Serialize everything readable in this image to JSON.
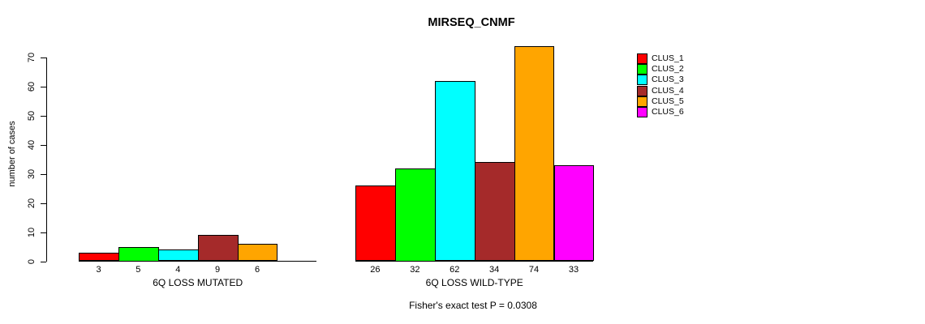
{
  "chart_data": {
    "type": "bar",
    "title": "MIRSEQ_CNMF",
    "ylabel": "number of cases",
    "xlabel": "",
    "ylim": [
      0,
      74
    ],
    "yticks": [
      0,
      10,
      20,
      30,
      40,
      50,
      60,
      70
    ],
    "grid": false,
    "legend_position": "right",
    "bar_value_labels_shown": true,
    "groups": [
      {
        "xlabel": "6Q LOSS MUTATED"
      },
      {
        "xlabel": "6Q LOSS WILD-TYPE"
      }
    ],
    "series": [
      {
        "name": "CLUS_1",
        "color": "#FF0000",
        "values": [
          3,
          26
        ]
      },
      {
        "name": "CLUS_2",
        "color": "#00FF00",
        "values": [
          5,
          32
        ]
      },
      {
        "name": "CLUS_3",
        "color": "#00FFFF",
        "values": [
          4,
          62
        ]
      },
      {
        "name": "CLUS_4",
        "color": "#A52A2A",
        "values": [
          9,
          34
        ]
      },
      {
        "name": "CLUS_5",
        "color": "#FFA500",
        "values": [
          6,
          74
        ]
      },
      {
        "name": "CLUS_6",
        "color": "#FF00FF",
        "values": [
          0,
          33
        ]
      }
    ],
    "annotation": "Fisher's exact test P = 0.0308"
  }
}
